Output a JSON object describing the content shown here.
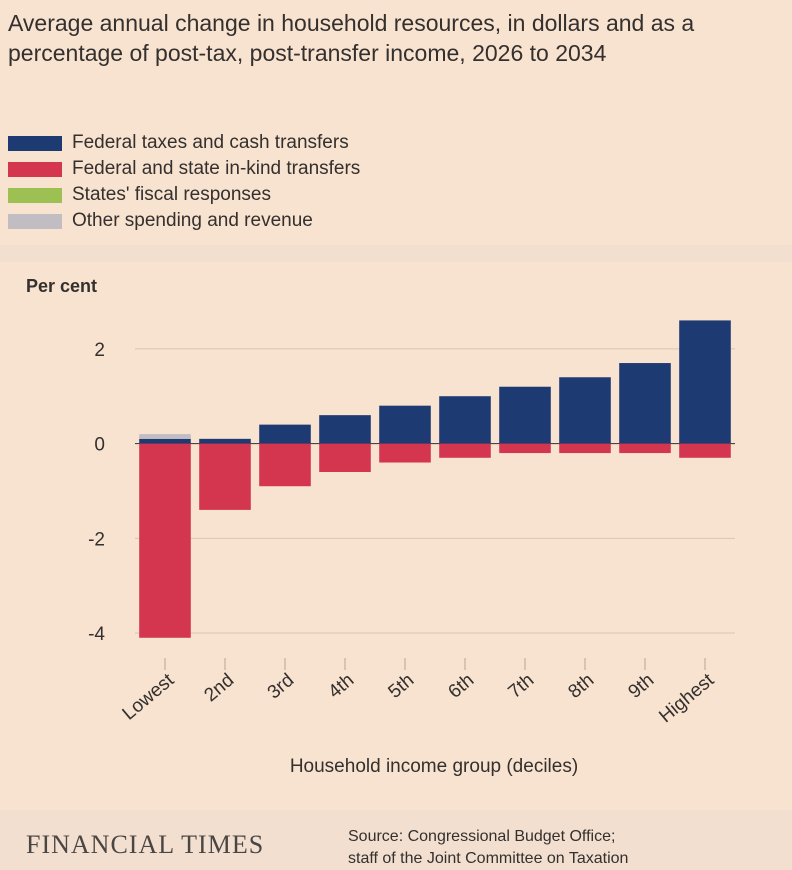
{
  "title": "Average annual change in household resources, in dollars and as a percentage of post-tax, post-transfer income, 2026 to 2034",
  "legend": [
    {
      "label": "Federal taxes and cash transfers",
      "color": "#1e3a73"
    },
    {
      "label": "Federal and state in-kind transfers",
      "color": "#d4364f"
    },
    {
      "label": "States' fiscal responses",
      "color": "#9cc152"
    },
    {
      "label": "Other spending and revenue",
      "color": "#c2bdc2"
    }
  ],
  "chart_data": {
    "type": "bar",
    "stacked": true,
    "ylabel": "Per cent",
    "xlabel": "Household income group (deciles)",
    "categories": [
      "Lowest",
      "2nd",
      "3rd",
      "4th",
      "5th",
      "6th",
      "7th",
      "8th",
      "9th",
      "Highest"
    ],
    "ylim": [
      -4.4,
      3.2
    ],
    "yticks": [
      2,
      0,
      -2,
      -4
    ],
    "ytick_labels": [
      "2",
      "0",
      "-2",
      "-4"
    ],
    "grid": true,
    "series": [
      {
        "name": "Federal taxes and cash transfers",
        "color": "#1e3a73",
        "values": [
          0.1,
          0.1,
          0.4,
          0.6,
          0.8,
          1.0,
          1.2,
          1.4,
          1.7,
          2.6
        ]
      },
      {
        "name": "Federal and state in-kind transfers",
        "color": "#d4364f",
        "values": [
          -4.1,
          -1.4,
          -0.9,
          -0.6,
          -0.4,
          -0.3,
          -0.2,
          -0.2,
          -0.2,
          -0.3
        ]
      },
      {
        "name": "States' fiscal responses",
        "color": "#9cc152",
        "values": [
          0,
          0,
          0,
          0,
          0,
          0,
          0,
          0,
          0,
          0
        ]
      },
      {
        "name": "Other spending and revenue",
        "color": "#c2bdc2",
        "values": [
          0.1,
          0,
          0,
          0,
          0,
          0,
          0,
          0,
          0,
          0
        ]
      }
    ]
  },
  "footer": {
    "logo": "FINANCIAL TIMES",
    "source_line1": "Source: Congressional Budget Office;",
    "source_line2": "staff of the Joint Committee on Taxation"
  }
}
